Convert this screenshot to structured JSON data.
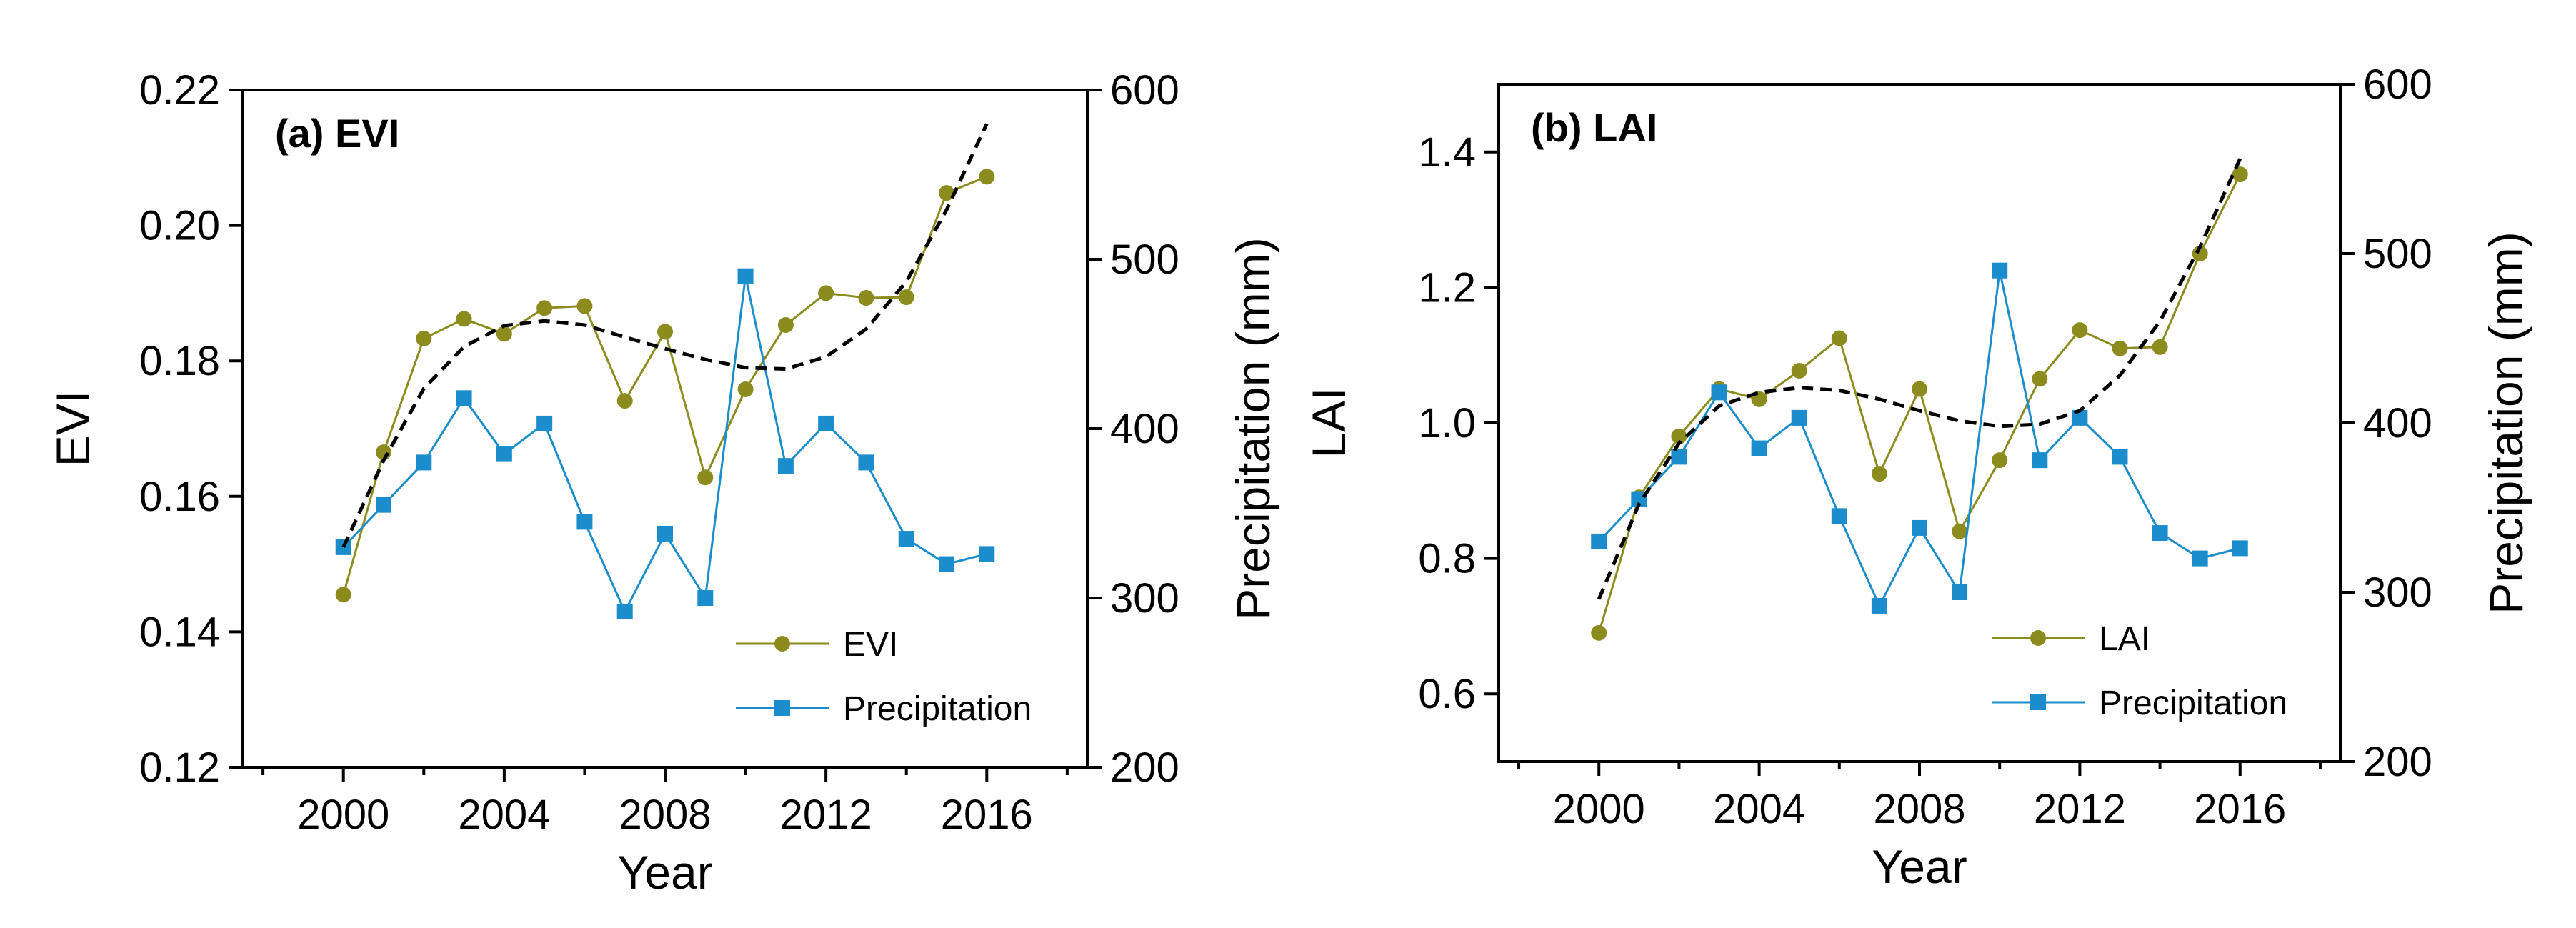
{
  "colors": {
    "vegetation": "#8C8C1E",
    "precipitation": "#1B8DCC",
    "trend": "#000000",
    "axis": "#000000"
  },
  "chart_data": [
    {
      "type": "line",
      "panel_title": "(a) EVI",
      "xlabel": "Year",
      "ylabel_left": "EVI",
      "ylabel_right": "Precipitation (mm)",
      "xlim": [
        1997.5,
        2018.5
      ],
      "ylim_left": [
        0.12,
        0.22
      ],
      "ylim_right": [
        200,
        600
      ],
      "x_ticks": [
        2000,
        2004,
        2008,
        2012,
        2016
      ],
      "x_tick_labels": [
        "2000",
        "2004",
        "2008",
        "2012",
        "2016"
      ],
      "y_ticks_left": [
        0.12,
        0.14,
        0.16,
        0.18,
        0.2,
        0.22
      ],
      "y_tick_labels_left": [
        "0.12",
        "0.14",
        "0.16",
        "0.18",
        "0.20",
        "0.22"
      ],
      "y_ticks_right": [
        200,
        300,
        400,
        500,
        600
      ],
      "y_tick_labels_right": [
        "200",
        "300",
        "400",
        "500",
        "600"
      ],
      "x": [
        2000,
        2001,
        2002,
        2003,
        2004,
        2005,
        2006,
        2007,
        2008,
        2009,
        2010,
        2011,
        2012,
        2013,
        2014,
        2015,
        2016
      ],
      "series": [
        {
          "name": "EVI",
          "axis": "left",
          "marker": "circle",
          "values": [
            0.1455,
            0.1665,
            0.1833,
            0.1862,
            0.184,
            0.1878,
            0.1881,
            0.1741,
            0.1843,
            0.1628,
            0.1758,
            0.1853,
            0.19,
            0.1893,
            0.1894,
            0.2048,
            0.2072
          ]
        },
        {
          "name": "Precipitation",
          "axis": "right",
          "marker": "square",
          "values": [
            330,
            355,
            380,
            418,
            385,
            403,
            345,
            292,
            338,
            300,
            490,
            378,
            403,
            380,
            335,
            320,
            326
          ]
        }
      ],
      "trend": {
        "axis": "left",
        "x": [
          2000,
          2001,
          2002,
          2003,
          2004,
          2005,
          2006,
          2007,
          2008,
          2009,
          2010,
          2011,
          2012,
          2013,
          2014,
          2015,
          2016
        ],
        "values": [
          0.1525,
          0.1653,
          0.1759,
          0.1821,
          0.1852,
          0.1859,
          0.1853,
          0.1835,
          0.1818,
          0.1802,
          0.179,
          0.1788,
          0.1806,
          0.1847,
          0.1917,
          0.2023,
          0.215
        ]
      },
      "legend": [
        "EVI",
        "Precipitation"
      ],
      "legend_position": "bottom-right"
    },
    {
      "type": "line",
      "panel_title": "(b) LAI",
      "xlabel": "Year",
      "ylabel_left": "LAI",
      "ylabel_right": "Precipitation (mm)",
      "xlim": [
        1997.5,
        2018.5
      ],
      "ylim_left": [
        0.5,
        1.5
      ],
      "ylim_right": [
        200,
        600
      ],
      "x_ticks": [
        2000,
        2004,
        2008,
        2012,
        2016
      ],
      "x_tick_labels": [
        "2000",
        "2004",
        "2008",
        "2012",
        "2016"
      ],
      "y_ticks_left": [
        0.6,
        0.8,
        1.0,
        1.2,
        1.4
      ],
      "y_tick_labels_left": [
        "0.6",
        "0.8",
        "1.0",
        "1.2",
        "1.4"
      ],
      "y_ticks_right": [
        200,
        300,
        400,
        500,
        600
      ],
      "y_tick_labels_right": [
        "200",
        "300",
        "400",
        "500",
        "600"
      ],
      "x": [
        2000,
        2001,
        2002,
        2003,
        2004,
        2005,
        2006,
        2007,
        2008,
        2009,
        2010,
        2011,
        2012,
        2013,
        2014,
        2015,
        2016
      ],
      "series": [
        {
          "name": "LAI",
          "axis": "left",
          "marker": "circle",
          "values": [
            0.69,
            0.89,
            0.98,
            1.05,
            1.035,
            1.077,
            1.125,
            0.925,
            1.05,
            0.84,
            0.945,
            1.065,
            1.137,
            1.11,
            1.112,
            1.25,
            1.367
          ]
        },
        {
          "name": "Precipitation",
          "axis": "right",
          "marker": "square",
          "values": [
            330,
            355,
            380,
            418,
            385,
            403,
            345,
            292,
            338,
            300,
            490,
            378,
            403,
            380,
            335,
            320,
            326
          ]
        }
      ],
      "trend": {
        "axis": "left",
        "x": [
          2000,
          2001,
          2002,
          2003,
          2004,
          2005,
          2006,
          2007,
          2008,
          2009,
          2010,
          2011,
          2012,
          2013,
          2014,
          2015,
          2016
        ],
        "values": [
          0.74,
          0.88,
          0.97,
          1.025,
          1.045,
          1.052,
          1.048,
          1.035,
          1.018,
          1.003,
          0.995,
          0.998,
          1.018,
          1.07,
          1.15,
          1.26,
          1.39
        ]
      },
      "legend": [
        "LAI",
        "Precipitation"
      ],
      "legend_position": "bottom-right"
    }
  ]
}
